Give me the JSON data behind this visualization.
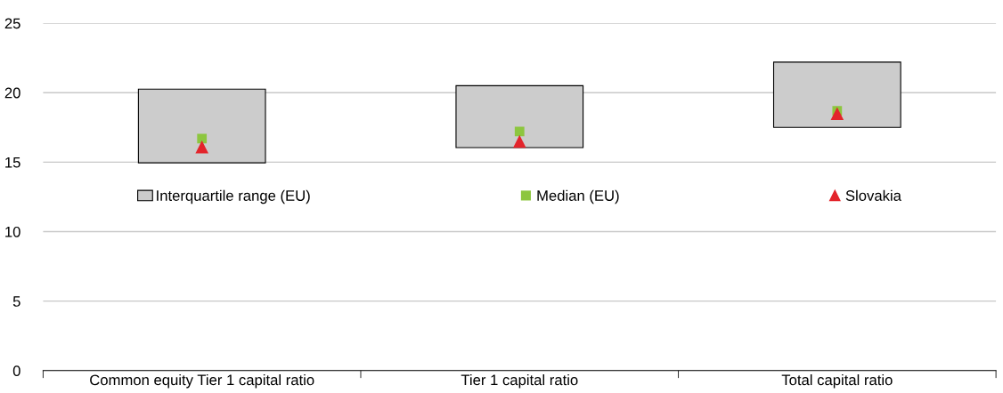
{
  "chart_data": {
    "type": "bar",
    "categories": [
      "Common equity Tier 1 capital ratio",
      "Tier 1 capital ratio",
      "Total capital ratio"
    ],
    "series": [
      {
        "name": "Interquartile range (EU)",
        "color": "#cccccc",
        "base": [
          14.95,
          16.05,
          17.5
        ],
        "values": [
          5.3,
          4.45,
          4.7
        ]
      },
      {
        "name": "Median (EU)",
        "type": "scatter",
        "marker": "square",
        "color": "#8dc63f",
        "values": [
          16.7,
          17.2,
          18.7
        ]
      },
      {
        "name": "Slovakia",
        "type": "scatter",
        "marker": "triangle",
        "color": "#e3242b",
        "values": [
          16.1,
          16.5,
          18.5
        ]
      }
    ],
    "ylim": [
      0,
      25
    ],
    "yticks": [
      0,
      5,
      10,
      15,
      20,
      25
    ],
    "grid": "y",
    "legend": "center"
  }
}
